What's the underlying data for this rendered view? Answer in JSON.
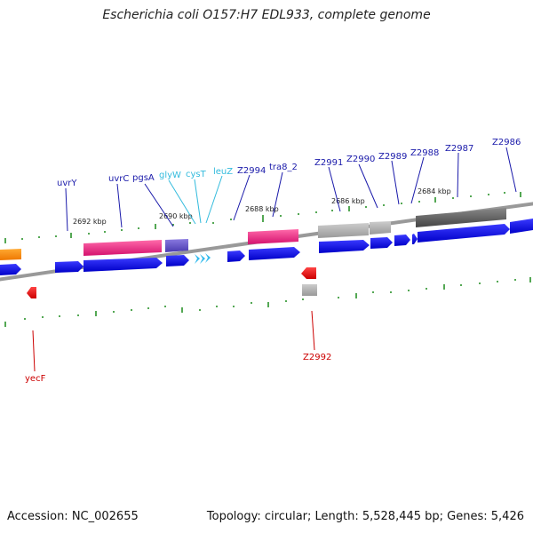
{
  "title": "Escherichia coli O157:H7 EDL933, complete genome",
  "footer": {
    "accession": "Accession: NC_002655",
    "stats": "Topology: circular; Length: 5,528,445 bp; Genes: 5,426"
  },
  "colors": {
    "forward_gene": "#1a1aee",
    "reverse_gene": "#ee1111",
    "trna": "#33bbee",
    "rrna_pink": "#ee2a8a",
    "purple": "#6a5acd",
    "grey": "#aaaaaa",
    "dark_grey": "#666666",
    "orange": "#ff8800",
    "tick": "#1a8a1a",
    "backbone": "#888888",
    "label_forward": "#1a1aaa",
    "label_reverse": "#cc0000",
    "label_trna": "#33bbdd"
  },
  "kbp_labels": [
    "2692 kbp",
    "2690 kbp",
    "2688 kbp",
    "2686 kbp",
    "2684 kbp"
  ],
  "gene_labels": [
    {
      "text": "uvrY",
      "type": "forward"
    },
    {
      "text": "uvrC",
      "type": "forward"
    },
    {
      "text": "pgsA",
      "type": "forward"
    },
    {
      "text": "glyW",
      "type": "trna"
    },
    {
      "text": "cysT",
      "type": "trna"
    },
    {
      "text": "leuZ",
      "type": "trna"
    },
    {
      "text": "Z2994",
      "type": "forward"
    },
    {
      "text": "tra8_2",
      "type": "forward"
    },
    {
      "text": "Z2991",
      "type": "forward"
    },
    {
      "text": "Z2990",
      "type": "forward"
    },
    {
      "text": "Z2989",
      "type": "forward"
    },
    {
      "text": "Z2988",
      "type": "forward"
    },
    {
      "text": "Z2987",
      "type": "forward"
    },
    {
      "text": "Z2986",
      "type": "forward"
    },
    {
      "text": "Z2992",
      "type": "reverse"
    },
    {
      "text": "yecF",
      "type": "reverse"
    }
  ]
}
